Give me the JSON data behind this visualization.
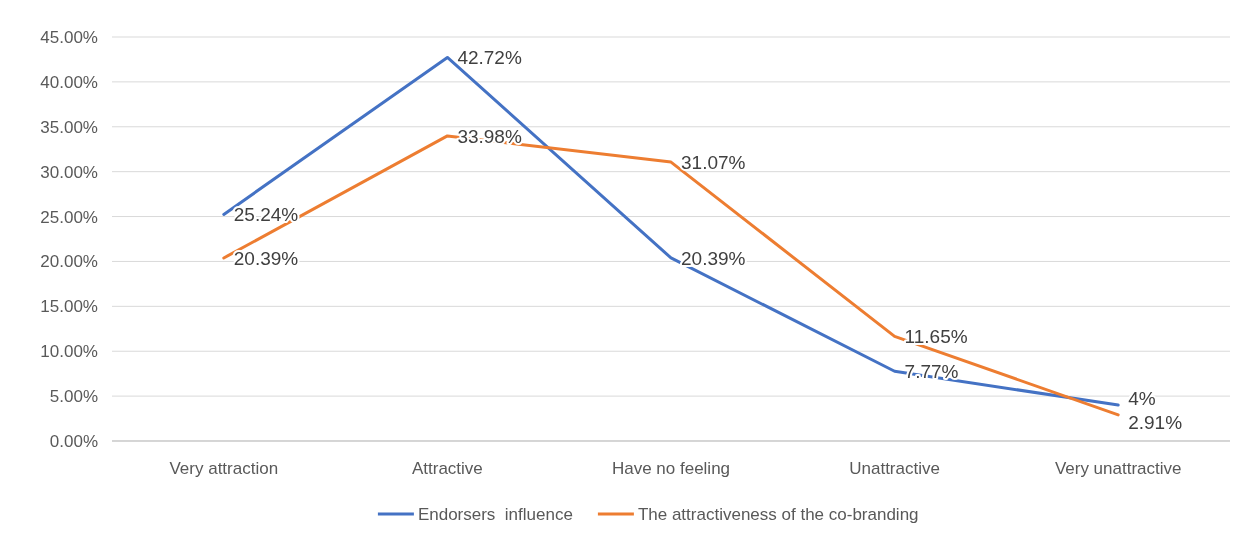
{
  "chart_data": {
    "type": "line",
    "categories": [
      "Very attraction",
      "Attractive",
      "Have no feeling",
      "Unattractive",
      "Very unattractive"
    ],
    "series": [
      {
        "name": "Endorsers  influence",
        "color": "#4472c4",
        "values": [
          25.24,
          42.72,
          20.39,
          7.77,
          4
        ],
        "value_labels": [
          "25.24%",
          "42.72%",
          "20.39%",
          "7.77%",
          "4%"
        ]
      },
      {
        "name": "The attractiveness of the co-branding",
        "color": "#ed7d31",
        "values": [
          20.39,
          33.98,
          31.07,
          11.65,
          2.91
        ],
        "value_labels": [
          "20.39%",
          "33.98%",
          "31.07%",
          "11.65%",
          "2.91%"
        ]
      }
    ],
    "ylim": [
      0,
      45
    ],
    "yticks": [
      {
        "value": 0,
        "label": "0.00%"
      },
      {
        "value": 5,
        "label": "5.00%"
      },
      {
        "value": 10,
        "label": "10.00%"
      },
      {
        "value": 15,
        "label": "15.00%"
      },
      {
        "value": 20,
        "label": "20.00%"
      },
      {
        "value": 25,
        "label": "25.00%"
      },
      {
        "value": 30,
        "label": "30.00%"
      },
      {
        "value": 35,
        "label": "35.00%"
      },
      {
        "value": 40,
        "label": "40.00%"
      },
      {
        "value": 45,
        "label": "45.00%"
      }
    ],
    "grid": "y",
    "legend": "bottom",
    "marker": "none",
    "line_style": "solid"
  }
}
